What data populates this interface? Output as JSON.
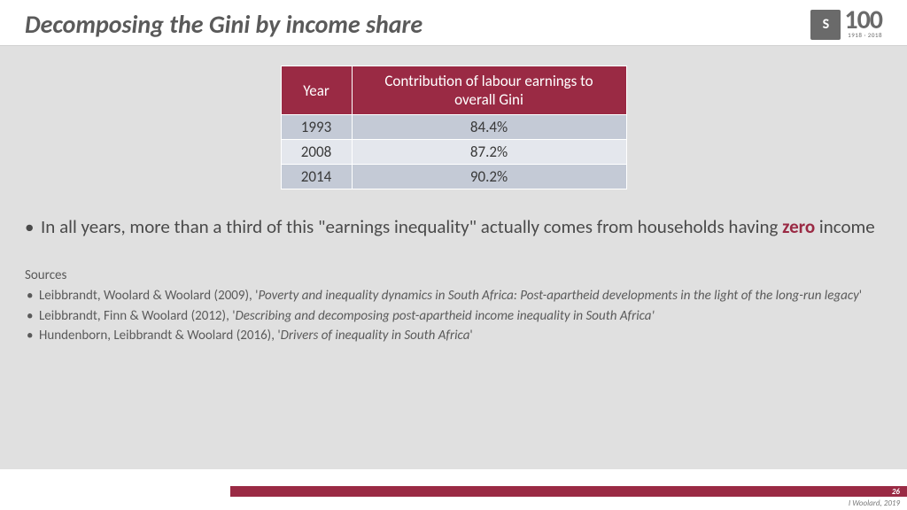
{
  "title": "Decomposing the Gini by income share",
  "logo": {
    "badge": "S",
    "hundred": "100",
    "years": "1918 · 2018"
  },
  "table": {
    "columns": [
      "Year",
      "Contribution of labour earnings to overall Gini"
    ],
    "rows": [
      [
        "1993",
        "84.4%"
      ],
      [
        "2008",
        "87.2%"
      ],
      [
        "2014",
        "90.2%"
      ]
    ],
    "header_bg": "#9a2a44",
    "row_odd_bg": "#c4cad6",
    "row_even_bg": "#e4e7ed"
  },
  "bullet": {
    "pre": "In all years, more than a third of this \"earnings inequality\" actually comes from households having ",
    "highlight": "zero",
    "post": " income"
  },
  "sources": {
    "heading": "Sources",
    "items": [
      {
        "authors": "Leibbrandt, Woolard & Woolard (2009), '",
        "title": "Poverty and inequality dynamics in South Africa: Post-apartheid developments in the light of the long-run legacy",
        "tail": "'"
      },
      {
        "authors": "Leibbrandt, Finn & Woolard (2012), '",
        "title": "Describing and decomposing post-apartheid income inequality in South Africa'",
        "tail": ""
      },
      {
        "authors": "Hundenborn, Leibbrandt & Woolard (2016), '",
        "title": "Drivers of inequality in South Africa",
        "tail": "'"
      }
    ]
  },
  "footer": {
    "page": "26",
    "attribution": "I Woolard, 2019"
  },
  "colors": {
    "accent": "#9a2a44",
    "body_bg": "#e0e0e0",
    "text": "#4a4a4a"
  }
}
